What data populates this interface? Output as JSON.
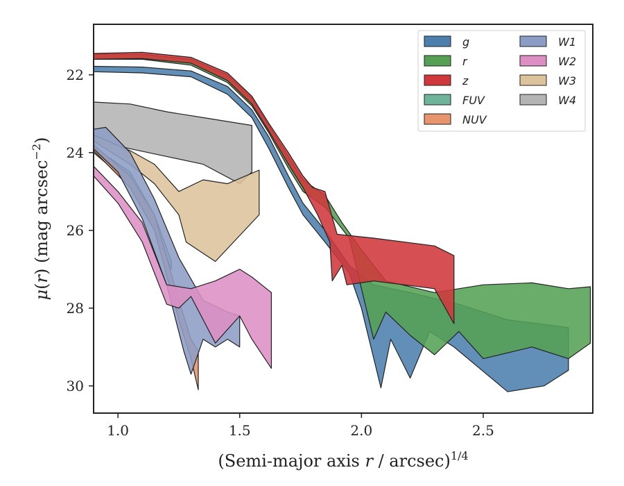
{
  "chart_data": {
    "type": "area",
    "title": "",
    "xlabel": "(Semi-major axis r / arcsec)^1/4",
    "ylabel": "μ(r) (mag arcsec^−2)",
    "xlim": [
      0.9,
      2.95
    ],
    "ylim": [
      30.7,
      20.7
    ],
    "y_inverted": true,
    "x_ticks": [
      1.0,
      1.5,
      2.0,
      2.5
    ],
    "x_tick_labels": [
      "1.0",
      "1.5",
      "2.0",
      "2.5"
    ],
    "y_ticks": [
      22,
      24,
      26,
      28,
      30
    ],
    "y_tick_labels": [
      "22",
      "24",
      "26",
      "28",
      "30"
    ],
    "grid": false,
    "legend_position": "top-right",
    "legend_columns": 2,
    "series": [
      {
        "name": "g",
        "color": "#4c7fad",
        "upper": [
          [
            0.9,
            21.78
          ],
          [
            1.1,
            21.8
          ],
          [
            1.3,
            21.9
          ],
          [
            1.45,
            22.3
          ],
          [
            1.55,
            22.9
          ],
          [
            1.62,
            23.6
          ],
          [
            1.7,
            24.6
          ],
          [
            1.76,
            25.3
          ],
          [
            1.85,
            26.0
          ],
          [
            1.95,
            26.9
          ],
          [
            2.05,
            27.4
          ],
          [
            2.2,
            27.6
          ],
          [
            2.4,
            27.9
          ],
          [
            2.6,
            28.3
          ],
          [
            2.85,
            28.5
          ]
        ],
        "lower": [
          [
            0.9,
            21.92
          ],
          [
            1.1,
            21.95
          ],
          [
            1.3,
            22.05
          ],
          [
            1.45,
            22.5
          ],
          [
            1.55,
            23.1
          ],
          [
            1.62,
            23.9
          ],
          [
            1.7,
            24.9
          ],
          [
            1.76,
            25.6
          ],
          [
            1.85,
            26.3
          ],
          [
            1.95,
            27.1
          ],
          [
            2.0,
            28.0
          ],
          [
            2.08,
            30.05
          ],
          [
            2.12,
            28.8
          ],
          [
            2.2,
            29.8
          ],
          [
            2.28,
            28.6
          ],
          [
            2.38,
            29.0
          ],
          [
            2.6,
            30.15
          ],
          [
            2.75,
            30.0
          ],
          [
            2.85,
            29.6
          ]
        ]
      },
      {
        "name": "r",
        "color": "#55a055",
        "upper": [
          [
            0.9,
            21.47
          ],
          [
            1.1,
            21.47
          ],
          [
            1.3,
            21.6
          ],
          [
            1.45,
            22.0
          ],
          [
            1.55,
            22.6
          ],
          [
            1.62,
            23.3
          ],
          [
            1.7,
            24.1
          ],
          [
            1.76,
            24.7
          ],
          [
            1.85,
            25.1
          ],
          [
            1.92,
            25.8
          ],
          [
            2.0,
            26.5
          ],
          [
            2.1,
            27.3
          ],
          [
            2.3,
            27.6
          ],
          [
            2.5,
            27.4
          ],
          [
            2.7,
            27.35
          ],
          [
            2.85,
            27.5
          ],
          [
            2.94,
            27.45
          ]
        ],
        "lower": [
          [
            0.9,
            21.6
          ],
          [
            1.1,
            21.6
          ],
          [
            1.3,
            21.75
          ],
          [
            1.45,
            22.2
          ],
          [
            1.55,
            22.8
          ],
          [
            1.62,
            23.5
          ],
          [
            1.7,
            24.4
          ],
          [
            1.76,
            25.0
          ],
          [
            1.85,
            25.4
          ],
          [
            1.95,
            26.2
          ],
          [
            2.05,
            28.8
          ],
          [
            2.1,
            28.1
          ],
          [
            2.2,
            28.7
          ],
          [
            2.3,
            29.2
          ],
          [
            2.4,
            28.6
          ],
          [
            2.5,
            29.3
          ],
          [
            2.7,
            29.0
          ],
          [
            2.85,
            29.3
          ],
          [
            2.94,
            28.9
          ]
        ]
      },
      {
        "name": "z",
        "color": "#d0383b",
        "upper": [
          [
            0.9,
            21.45
          ],
          [
            1.1,
            21.42
          ],
          [
            1.3,
            21.55
          ],
          [
            1.45,
            21.95
          ],
          [
            1.55,
            22.55
          ],
          [
            1.62,
            23.25
          ],
          [
            1.7,
            24.0
          ],
          [
            1.76,
            24.6
          ],
          [
            1.8,
            24.9
          ],
          [
            1.85,
            25.0
          ],
          [
            1.9,
            26.1
          ],
          [
            2.05,
            26.2
          ],
          [
            2.3,
            26.4
          ],
          [
            2.38,
            26.65
          ]
        ],
        "lower": [
          [
            0.9,
            21.6
          ],
          [
            1.1,
            21.58
          ],
          [
            1.3,
            21.7
          ],
          [
            1.45,
            22.15
          ],
          [
            1.55,
            22.75
          ],
          [
            1.62,
            23.45
          ],
          [
            1.7,
            24.3
          ],
          [
            1.76,
            24.9
          ],
          [
            1.82,
            25.6
          ],
          [
            1.87,
            26.3
          ],
          [
            1.88,
            27.3
          ],
          [
            1.92,
            26.9
          ],
          [
            1.94,
            27.4
          ],
          [
            2.05,
            27.3
          ],
          [
            2.3,
            27.5
          ],
          [
            2.38,
            28.4
          ]
        ]
      },
      {
        "name": "FUV",
        "color": "#6db49a",
        "upper": [
          [
            0.9,
            23.85
          ],
          [
            1.05,
            24.5
          ],
          [
            1.15,
            25.6
          ],
          [
            1.22,
            26.8
          ]
        ],
        "lower": [
          [
            0.9,
            24.0
          ],
          [
            1.05,
            24.8
          ],
          [
            1.15,
            26.0
          ],
          [
            1.22,
            27.0
          ]
        ]
      },
      {
        "name": "NUV",
        "color": "#e8946d",
        "upper": [
          [
            0.9,
            23.8
          ],
          [
            1.05,
            24.6
          ],
          [
            1.15,
            25.6
          ],
          [
            1.25,
            27.8
          ],
          [
            1.3,
            28.8
          ],
          [
            1.33,
            29.1
          ]
        ],
        "lower": [
          [
            0.9,
            23.95
          ],
          [
            1.05,
            24.9
          ],
          [
            1.15,
            26.0
          ],
          [
            1.25,
            28.3
          ],
          [
            1.3,
            29.3
          ],
          [
            1.33,
            30.1
          ]
        ]
      },
      {
        "name": "W1",
        "color": "#8c9dc5",
        "upper": [
          [
            0.9,
            23.4
          ],
          [
            0.95,
            23.35
          ],
          [
            1.05,
            24.0
          ],
          [
            1.15,
            25.2
          ],
          [
            1.25,
            26.7
          ],
          [
            1.35,
            27.8
          ],
          [
            1.45,
            28.1
          ],
          [
            1.5,
            28.2
          ]
        ],
        "lower": [
          [
            0.9,
            23.9
          ],
          [
            1.0,
            24.5
          ],
          [
            1.1,
            25.7
          ],
          [
            1.2,
            27.4
          ],
          [
            1.27,
            29.1
          ],
          [
            1.3,
            29.7
          ],
          [
            1.35,
            28.8
          ],
          [
            1.4,
            29.0
          ],
          [
            1.45,
            28.8
          ],
          [
            1.5,
            29.0
          ]
        ]
      },
      {
        "name": "W2",
        "color": "#dd8fc4",
        "upper": [
          [
            0.9,
            24.35
          ],
          [
            1.0,
            25.0
          ],
          [
            1.1,
            25.8
          ],
          [
            1.2,
            27.4
          ],
          [
            1.3,
            27.5
          ],
          [
            1.4,
            27.3
          ],
          [
            1.5,
            27.0
          ],
          [
            1.55,
            27.2
          ],
          [
            1.63,
            27.6
          ]
        ],
        "lower": [
          [
            0.9,
            24.6
          ],
          [
            1.0,
            25.3
          ],
          [
            1.1,
            26.3
          ],
          [
            1.2,
            27.9
          ],
          [
            1.25,
            28.0
          ],
          [
            1.3,
            27.7
          ],
          [
            1.4,
            28.9
          ],
          [
            1.5,
            28.2
          ],
          [
            1.55,
            28.8
          ],
          [
            1.63,
            29.55
          ]
        ]
      },
      {
        "name": "W3",
        "color": "#ddc39b",
        "upper": [
          [
            0.9,
            23.55
          ],
          [
            1.05,
            23.95
          ],
          [
            1.15,
            24.3
          ],
          [
            1.25,
            25.0
          ],
          [
            1.35,
            24.7
          ],
          [
            1.45,
            24.8
          ],
          [
            1.58,
            24.45
          ]
        ],
        "lower": [
          [
            0.9,
            23.7
          ],
          [
            1.05,
            24.3
          ],
          [
            1.15,
            24.8
          ],
          [
            1.25,
            25.6
          ],
          [
            1.28,
            26.3
          ],
          [
            1.4,
            26.8
          ],
          [
            1.58,
            25.6
          ]
        ]
      },
      {
        "name": "W4",
        "color": "#b4b4b4",
        "upper": [
          [
            0.9,
            22.7
          ],
          [
            1.05,
            22.75
          ],
          [
            1.2,
            22.95
          ],
          [
            1.35,
            23.1
          ],
          [
            1.55,
            23.3
          ]
        ],
        "lower": [
          [
            0.9,
            23.7
          ],
          [
            1.05,
            23.9
          ],
          [
            1.2,
            24.1
          ],
          [
            1.35,
            24.3
          ],
          [
            1.5,
            24.8
          ],
          [
            1.55,
            24.5
          ]
        ]
      }
    ]
  }
}
